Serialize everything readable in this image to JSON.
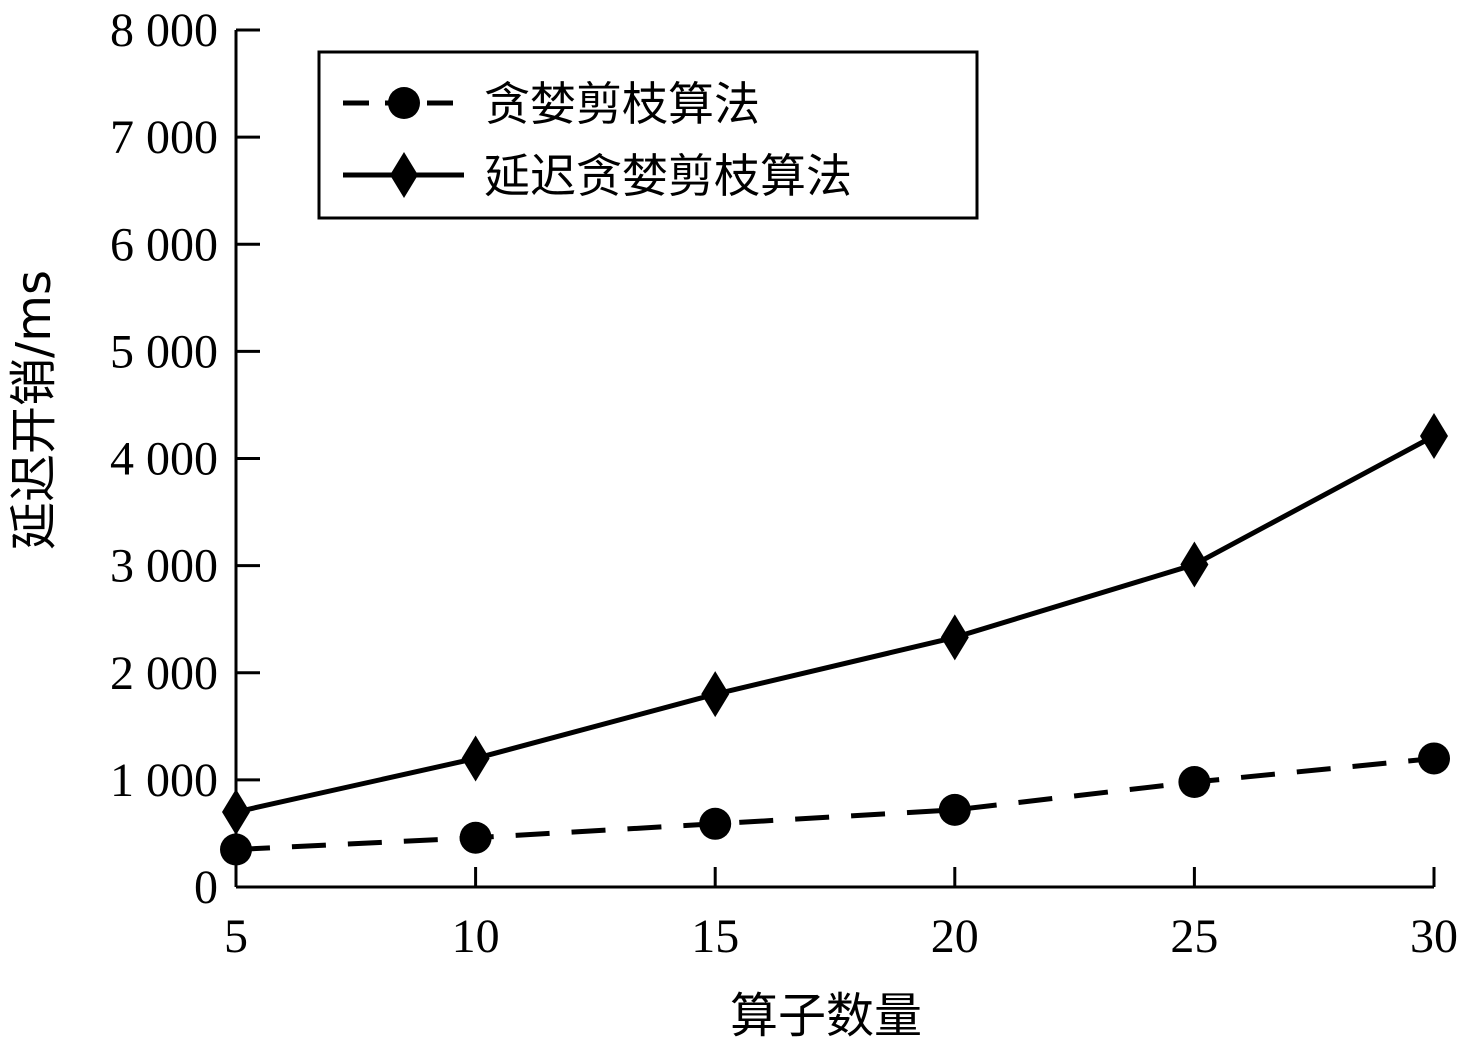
{
  "chart_data": {
    "type": "line",
    "x": [
      5,
      10,
      15,
      20,
      25,
      30
    ],
    "series": [
      {
        "name": "贪婪剪枝算法",
        "values": [
          350,
          460,
          590,
          720,
          980,
          1200
        ],
        "line_style": "dashed",
        "marker": "circle",
        "color": "#000000"
      },
      {
        "name": "延迟贪婪剪枝算法",
        "values": [
          700,
          1200,
          1800,
          2330,
          3010,
          4210
        ],
        "line_style": "solid",
        "marker": "diamond",
        "color": "#000000"
      }
    ],
    "xlabel": "算子数量",
    "ylabel": "延迟开销/ms",
    "xlim": [
      5,
      30
    ],
    "ylim": [
      0,
      8000
    ],
    "xticks": [
      "5",
      "10",
      "15",
      "20",
      "25",
      "30"
    ],
    "yticks": [
      "0",
      "1 000",
      "2 000",
      "3 000",
      "4 000",
      "5 000",
      "6 000",
      "7 000",
      "8 000"
    ],
    "grid": false,
    "legend_position": "top-left"
  }
}
